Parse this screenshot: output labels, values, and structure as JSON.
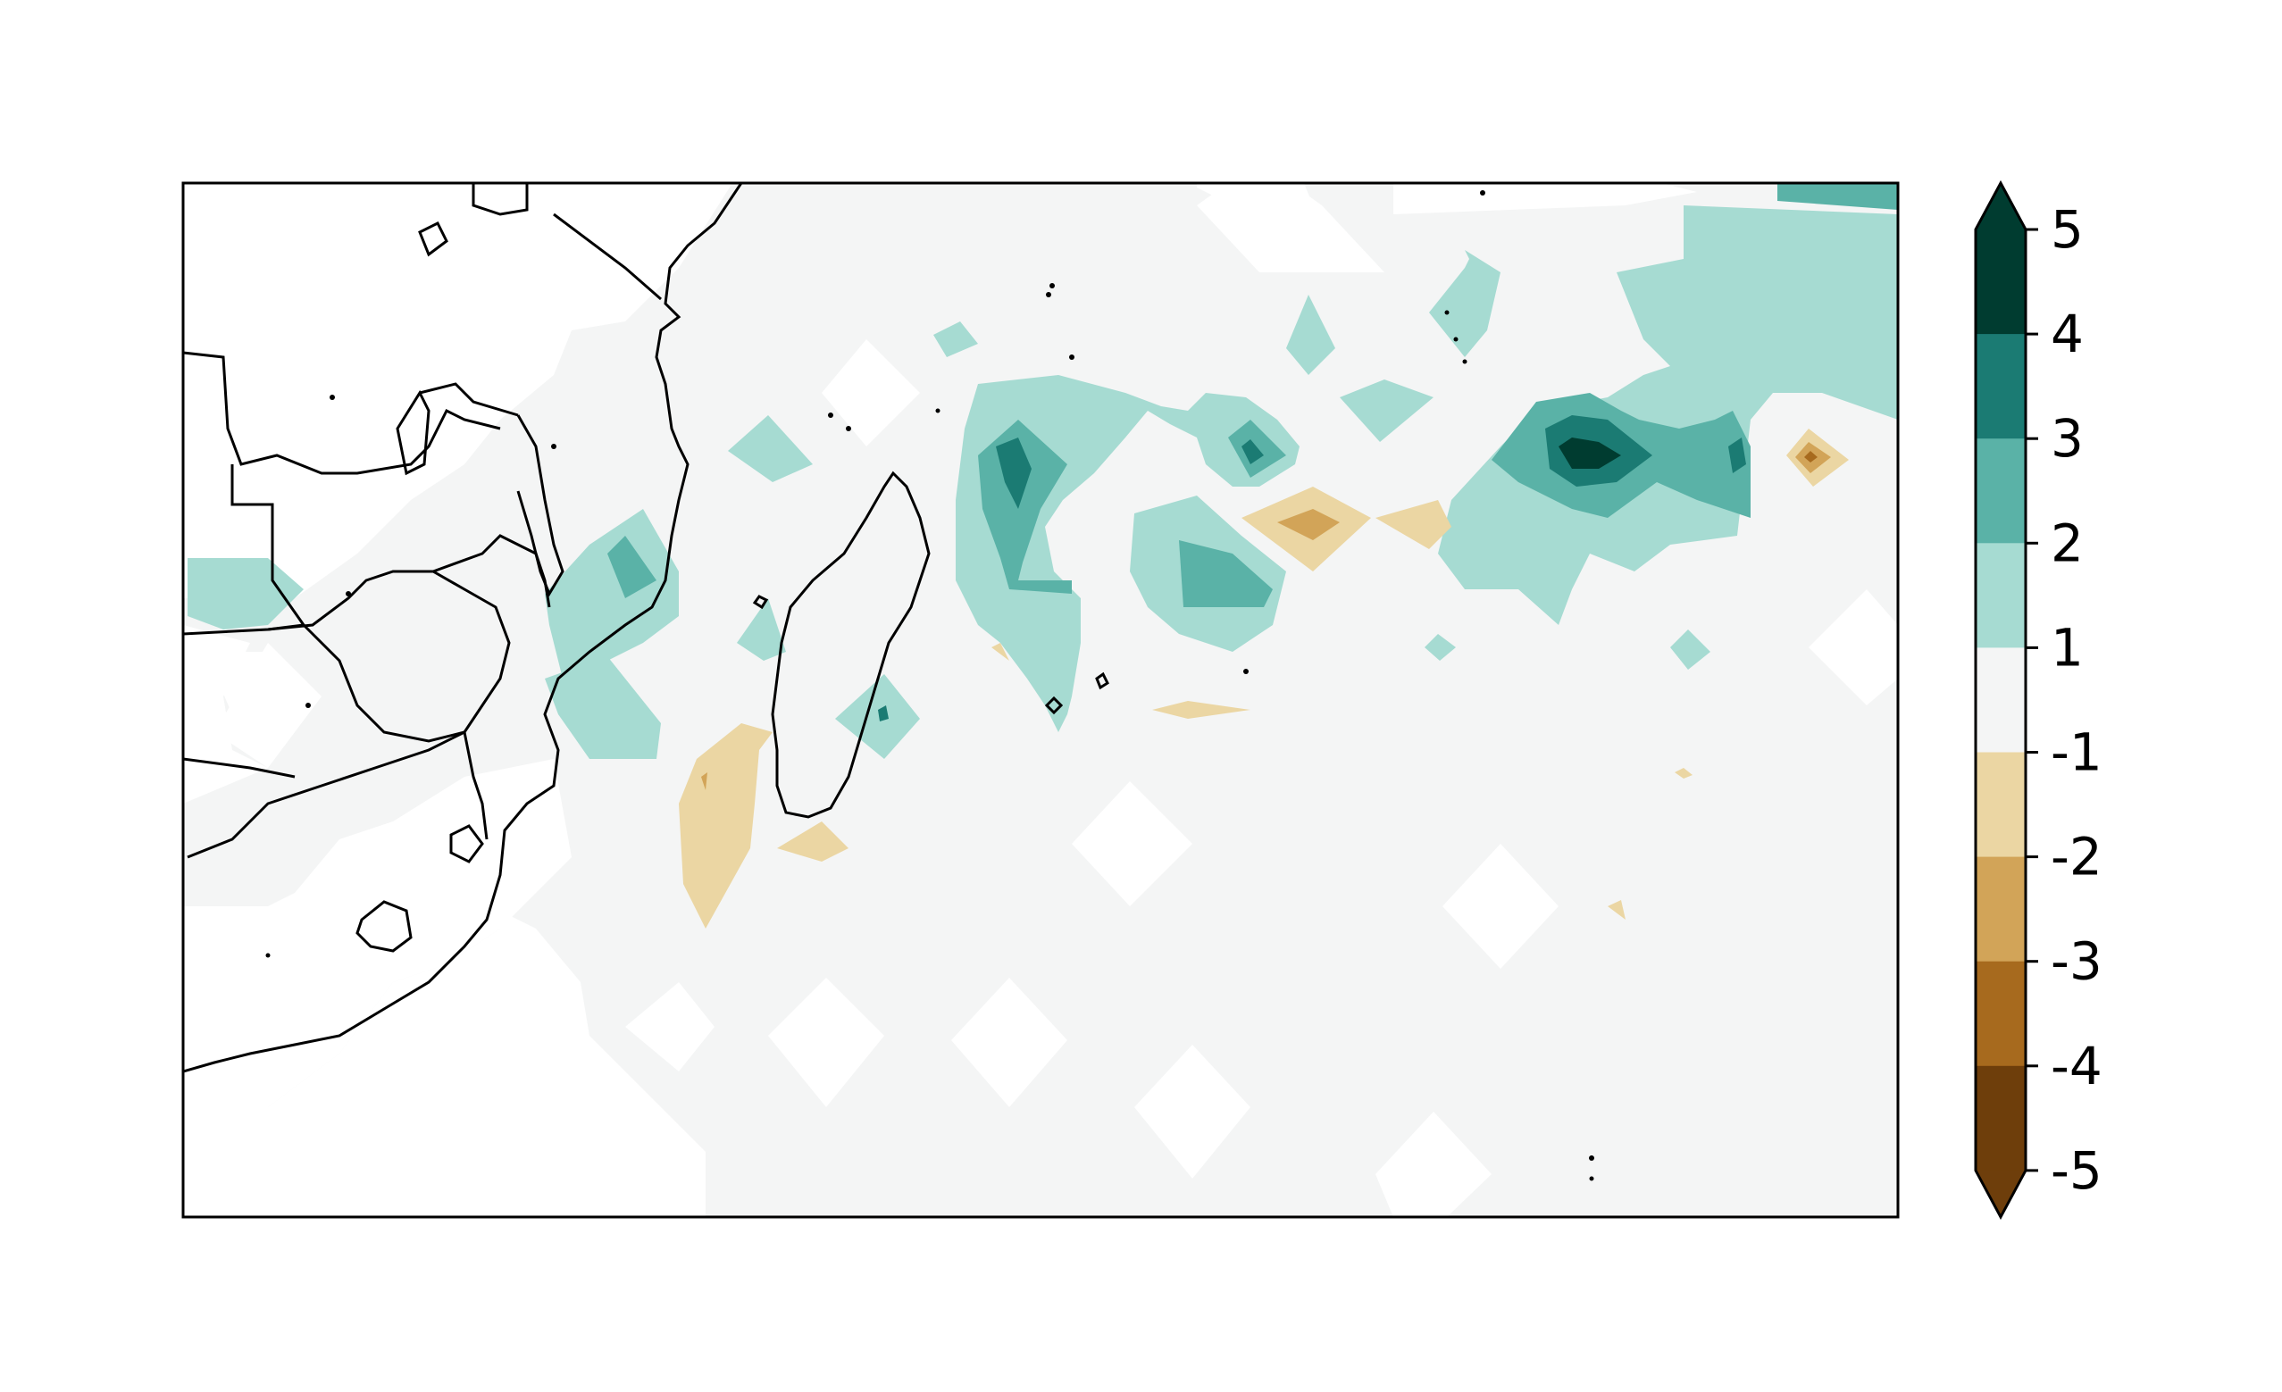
{
  "colorbar": {
    "ticks": [
      "5",
      "4",
      "3",
      "2",
      "1",
      "-1",
      "-2",
      "-3",
      "-4",
      "-5"
    ],
    "levels": [
      {
        "range": "4 to 5",
        "color": "#003c30"
      },
      {
        "range": "3 to 4",
        "color": "#1b7b73"
      },
      {
        "range": "2 to 3",
        "color": "#5ab2a7"
      },
      {
        "range": "1 to 2",
        "color": "#a6dbd2"
      },
      {
        "range": "-1 to 1",
        "color": "#f4f5f5"
      },
      {
        "range": "-2 to -1",
        "color": "#ebd6a3"
      },
      {
        "range": "-3 to -2",
        "color": "#d2a458"
      },
      {
        "range": "-4 to -3",
        "color": "#a76a1e"
      },
      {
        "range": "-5 to -4",
        "color": "#6e3e0b"
      }
    ],
    "extend": "both",
    "over_color": "#003c30",
    "under_color": "#6e3e0b"
  },
  "map": {
    "region": "Southern Africa, Madagascar and the south-west Indian Ocean",
    "coastline_color": "#000000",
    "ocean_background": "#f4f5f5",
    "land_background": "#ffffff"
  }
}
